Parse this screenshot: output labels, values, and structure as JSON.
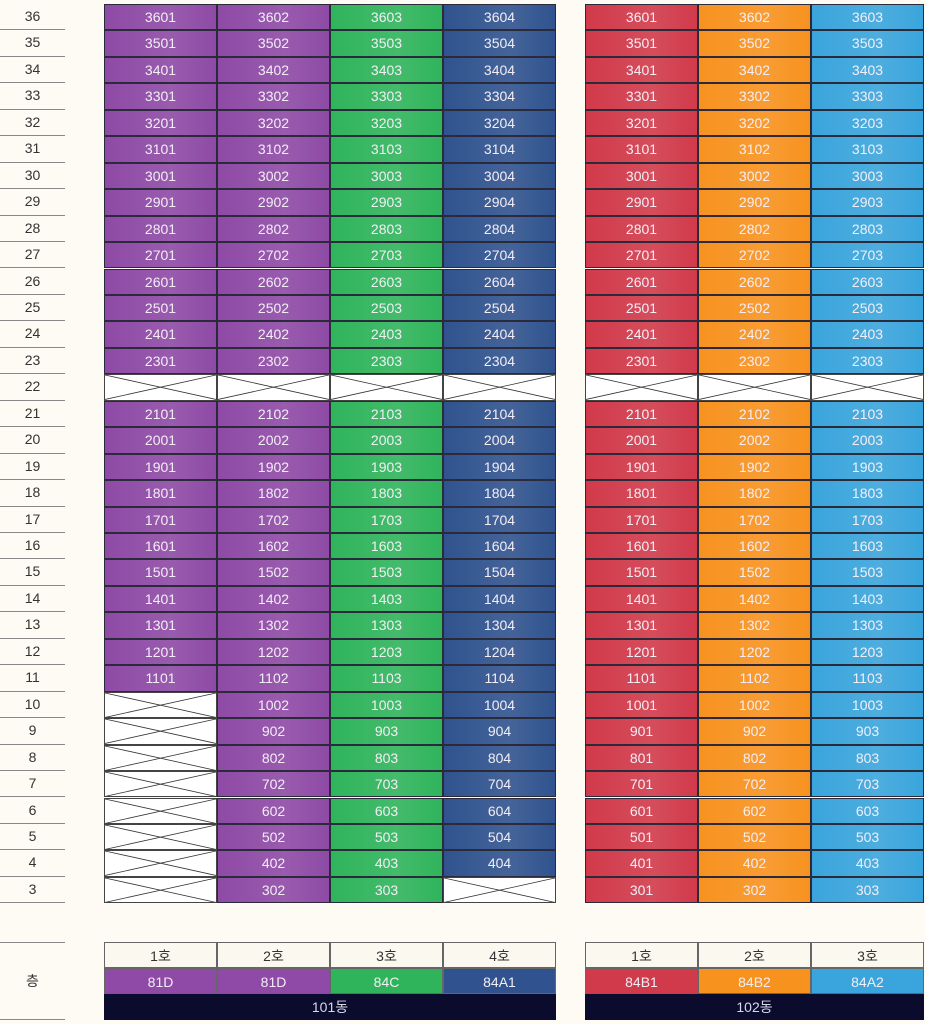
{
  "floors": [
    "36",
    "35",
    "34",
    "33",
    "32",
    "31",
    "30",
    "29",
    "28",
    "27",
    "26",
    "25",
    "24",
    "23",
    "22",
    "21",
    "20",
    "19",
    "18",
    "17",
    "16",
    "15",
    "14",
    "13",
    "12",
    "11",
    "10",
    "9",
    "8",
    "7",
    "6",
    "5",
    "4",
    "3"
  ],
  "floor_axis_label": "층",
  "buildings": [
    {
      "name": "101동",
      "columns": [
        {
          "label": "1호",
          "type": "81D",
          "color": "#8e4aa6"
        },
        {
          "label": "2호",
          "type": "81D",
          "color": "#8e4aa6"
        },
        {
          "label": "3호",
          "type": "84C",
          "color": "#2fb45c"
        },
        {
          "label": "4호",
          "type": "84A1",
          "color": "#30538f"
        }
      ],
      "rows": [
        [
          "3601",
          "3602",
          "3603",
          "3604"
        ],
        [
          "3501",
          "3502",
          "3503",
          "3504"
        ],
        [
          "3401",
          "3402",
          "3403",
          "3404"
        ],
        [
          "3301",
          "3302",
          "3303",
          "3304"
        ],
        [
          "3201",
          "3202",
          "3203",
          "3204"
        ],
        [
          "3101",
          "3102",
          "3103",
          "3104"
        ],
        [
          "3001",
          "3002",
          "3003",
          "3004"
        ],
        [
          "2901",
          "2902",
          "2903",
          "2904"
        ],
        [
          "2801",
          "2802",
          "2803",
          "2804"
        ],
        [
          "2701",
          "2702",
          "2703",
          "2704"
        ],
        [
          "2601",
          "2602",
          "2603",
          "2604"
        ],
        [
          "2501",
          "2502",
          "2503",
          "2504"
        ],
        [
          "2401",
          "2402",
          "2403",
          "2404"
        ],
        [
          "2301",
          "2302",
          "2303",
          "2304"
        ],
        [
          null,
          null,
          null,
          null
        ],
        [
          "2101",
          "2102",
          "2103",
          "2104"
        ],
        [
          "2001",
          "2002",
          "2003",
          "2004"
        ],
        [
          "1901",
          "1902",
          "1903",
          "1904"
        ],
        [
          "1801",
          "1802",
          "1803",
          "1804"
        ],
        [
          "1701",
          "1702",
          "1703",
          "1704"
        ],
        [
          "1601",
          "1602",
          "1603",
          "1604"
        ],
        [
          "1501",
          "1502",
          "1503",
          "1504"
        ],
        [
          "1401",
          "1402",
          "1403",
          "1404"
        ],
        [
          "1301",
          "1302",
          "1303",
          "1304"
        ],
        [
          "1201",
          "1202",
          "1203",
          "1204"
        ],
        [
          "1101",
          "1102",
          "1103",
          "1104"
        ],
        [
          null,
          "1002",
          "1003",
          "1004"
        ],
        [
          null,
          "902",
          "903",
          "904"
        ],
        [
          null,
          "802",
          "803",
          "804"
        ],
        [
          null,
          "702",
          "703",
          "704"
        ],
        [
          null,
          "602",
          "603",
          "604"
        ],
        [
          null,
          "502",
          "503",
          "504"
        ],
        [
          null,
          "402",
          "403",
          "404"
        ],
        [
          null,
          "302",
          "303",
          null
        ]
      ]
    },
    {
      "name": "102동",
      "columns": [
        {
          "label": "1호",
          "type": "84B1",
          "color": "#d13a4b"
        },
        {
          "label": "2호",
          "type": "84B2",
          "color": "#f7921f"
        },
        {
          "label": "3호",
          "type": "84A2",
          "color": "#3aa5dc"
        }
      ],
      "rows": [
        [
          "3601",
          "3602",
          "3603"
        ],
        [
          "3501",
          "3502",
          "3503"
        ],
        [
          "3401",
          "3402",
          "3403"
        ],
        [
          "3301",
          "3302",
          "3303"
        ],
        [
          "3201",
          "3202",
          "3203"
        ],
        [
          "3101",
          "3102",
          "3103"
        ],
        [
          "3001",
          "3002",
          "3003"
        ],
        [
          "2901",
          "2902",
          "2903"
        ],
        [
          "2801",
          "2802",
          "2803"
        ],
        [
          "2701",
          "2702",
          "2703"
        ],
        [
          "2601",
          "2602",
          "2603"
        ],
        [
          "2501",
          "2502",
          "2503"
        ],
        [
          "2401",
          "2402",
          "2403"
        ],
        [
          "2301",
          "2302",
          "2303"
        ],
        [
          null,
          null,
          null
        ],
        [
          "2101",
          "2102",
          "2103"
        ],
        [
          "2001",
          "2002",
          "2003"
        ],
        [
          "1901",
          "1902",
          "1903"
        ],
        [
          "1801",
          "1802",
          "1803"
        ],
        [
          "1701",
          "1702",
          "1703"
        ],
        [
          "1601",
          "1602",
          "1603"
        ],
        [
          "1501",
          "1502",
          "1503"
        ],
        [
          "1401",
          "1402",
          "1403"
        ],
        [
          "1301",
          "1302",
          "1303"
        ],
        [
          "1201",
          "1202",
          "1203"
        ],
        [
          "1101",
          "1102",
          "1103"
        ],
        [
          "1001",
          "1002",
          "1003"
        ],
        [
          "901",
          "902",
          "903"
        ],
        [
          "801",
          "802",
          "803"
        ],
        [
          "701",
          "702",
          "703"
        ],
        [
          "601",
          "602",
          "603"
        ],
        [
          "501",
          "502",
          "503"
        ],
        [
          "401",
          "402",
          "403"
        ],
        [
          "301",
          "302",
          "303"
        ]
      ]
    }
  ]
}
